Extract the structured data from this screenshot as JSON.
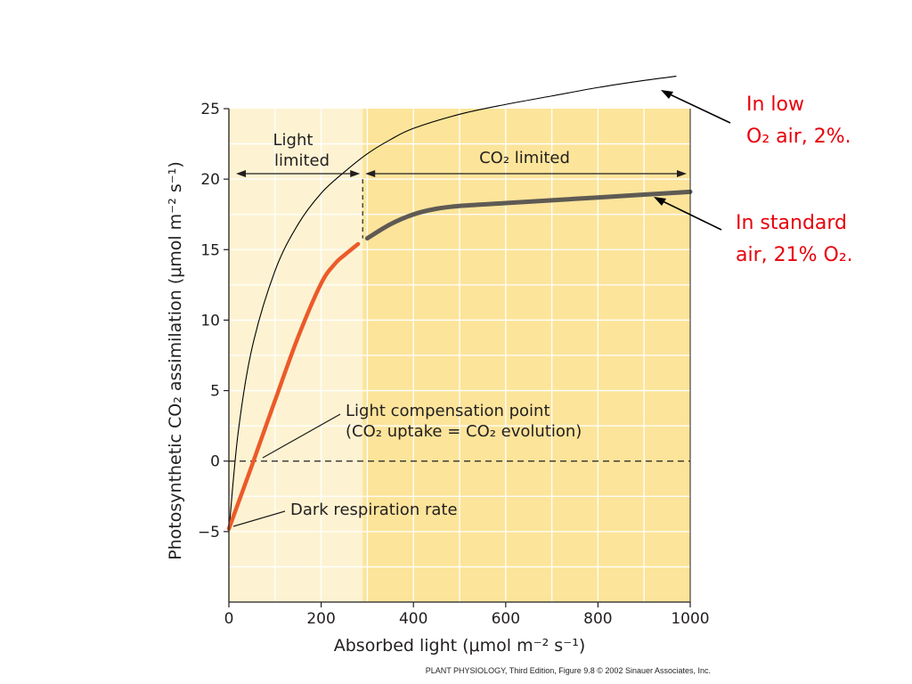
{
  "chart_data": {
    "type": "line",
    "xlabel": "Absorbed light (μmol m⁻² s⁻¹)",
    "ylabel": "Photosynthetic CO₂ assimilation (μmol m⁻² s⁻¹)",
    "xlim": [
      0,
      1000
    ],
    "ylim": [
      -10,
      25
    ],
    "x_ticks": [
      0,
      200,
      400,
      600,
      800,
      1000
    ],
    "x_tick_labels": [
      "0",
      "200",
      "400",
      "600",
      "800",
      "1000"
    ],
    "y_ticks": [
      -5,
      0,
      5,
      10,
      15,
      20,
      25
    ],
    "y_tick_labels": [
      "−5",
      "0",
      "5",
      "10",
      "15",
      "20",
      "25"
    ],
    "grid": true,
    "regions": [
      {
        "label": "Light limited",
        "x_range": [
          0,
          290
        ],
        "color": "#fdf3d2"
      },
      {
        "label": "CO₂ limited",
        "x_range": [
          290,
          1000
        ],
        "color": "#fce49a"
      }
    ],
    "series": [
      {
        "name": "In low O₂ air, 2%.",
        "color": "#000000",
        "x": [
          0,
          20,
          50,
          100,
          150,
          200,
          250,
          300,
          350,
          400,
          500,
          600,
          700,
          800,
          900,
          970
        ],
        "y": [
          -5,
          2,
          8,
          13.5,
          16.8,
          19,
          20.5,
          21.8,
          22.8,
          23.6,
          24.6,
          25.3,
          25.9,
          26.5,
          27,
          27.3
        ]
      },
      {
        "name": "In standard air, 21% O₂.",
        "color": "#5e5a54",
        "light_limited_color": "#ec5a2a",
        "x": [
          0,
          50,
          100,
          150,
          200,
          230,
          250,
          280,
          300,
          350,
          400,
          450,
          500,
          600,
          700,
          800,
          900,
          1000
        ],
        "y": [
          -4.8,
          -0.3,
          4.3,
          8.8,
          12.6,
          14,
          14.6,
          15.4,
          15.8,
          16.8,
          17.5,
          17.9,
          18.1,
          18.3,
          18.5,
          18.7,
          18.9,
          19.1
        ]
      }
    ],
    "annotations": {
      "light_limited": [
        "Light",
        "limited"
      ],
      "co2_limited": "CO₂ limited",
      "compensation_point": [
        "Light compensation point",
        "(CO₂ uptake = CO₂ evolution)"
      ],
      "dark_respiration": "Dark respiration rate",
      "low_o2_note": [
        "In low",
        "O₂ air, 2%."
      ],
      "standard_air_note": [
        "In standard",
        "air, 21% O₂."
      ]
    },
    "caption": "PLANT PHYSIOLOGY, Third Edition, Figure 9.8  © 2002 Sinauer Associates, Inc."
  }
}
